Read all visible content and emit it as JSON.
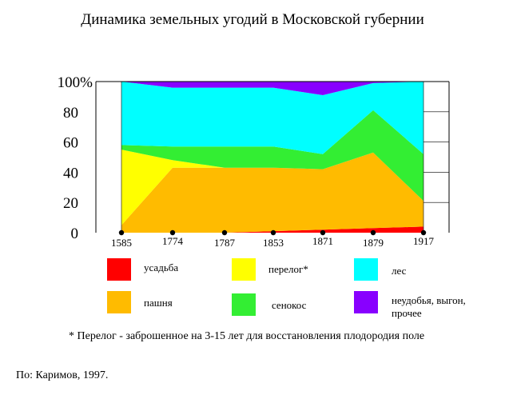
{
  "chart_data": {
    "type": "area",
    "stacked": true,
    "title": "Динамика земельных угодий в Московской губернии",
    "xlabel": "",
    "ylabel": "",
    "categories": [
      "1585",
      "1774",
      "1787",
      "1853",
      "1871",
      "1879",
      "1917"
    ],
    "ylim": [
      0,
      100
    ],
    "yticks": [
      "0",
      "20",
      "40",
      "60",
      "80",
      "100%"
    ],
    "grid": false,
    "legend_position": "bottom",
    "series": [
      {
        "name": "усадьба",
        "color": "#ff0000",
        "values": [
          0,
          0,
          0,
          1,
          2,
          3,
          4
        ]
      },
      {
        "name": "пашня",
        "color": "#ffbb00",
        "values": [
          5,
          43,
          43,
          42,
          40,
          50,
          17
        ]
      },
      {
        "name": "перелог*",
        "color": "#ffff00",
        "values": [
          50,
          5,
          0,
          0,
          0,
          0,
          0
        ]
      },
      {
        "name": "сенокос",
        "color": "#33ee33",
        "values": [
          3,
          9,
          14,
          14,
          10,
          28,
          31
        ]
      },
      {
        "name": "лес",
        "color": "#00ffff",
        "values": [
          42,
          39,
          39,
          39,
          39,
          18,
          48
        ]
      },
      {
        "name": "неудобья, выгон, прочее",
        "color": "#8800ff",
        "values": [
          0,
          4,
          4,
          4,
          9,
          1,
          0
        ]
      }
    ]
  },
  "legend_labels_display": {
    "nedobya_line1": "неудобья, выгон,",
    "nedobya_line2": "прочее"
  },
  "footnote": "* Перелог - заброшенное на 3-15 лет для восстановления плодородия поле",
  "source": "По: Каримов, 1997."
}
